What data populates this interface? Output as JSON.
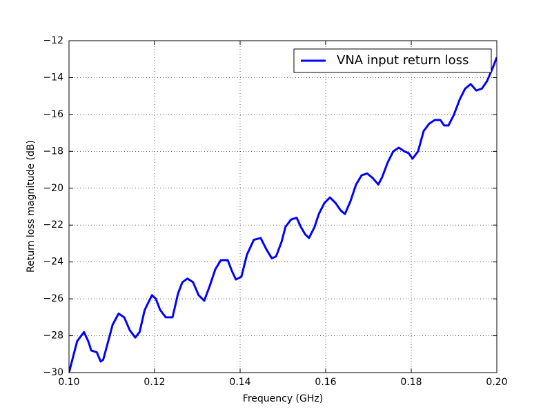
{
  "chart_data": {
    "type": "line",
    "xlabel": "Frequency (GHz)",
    "ylabel": "Return loss magnitude (dB)",
    "xlim": [
      0.1,
      0.2
    ],
    "ylim": [
      -30,
      -12
    ],
    "xticks": [
      {
        "value": 0.1,
        "label": "0.10"
      },
      {
        "value": 0.12,
        "label": "0.12"
      },
      {
        "value": 0.14,
        "label": "0.14"
      },
      {
        "value": 0.16,
        "label": "0.16"
      },
      {
        "value": 0.18,
        "label": "0.18"
      },
      {
        "value": 0.2,
        "label": "0.20"
      }
    ],
    "yticks": [
      {
        "value": -30,
        "label": "−30"
      },
      {
        "value": -28,
        "label": "−28"
      },
      {
        "value": -26,
        "label": "−26"
      },
      {
        "value": -24,
        "label": "−24"
      },
      {
        "value": -22,
        "label": "−22"
      },
      {
        "value": -20,
        "label": "−20"
      },
      {
        "value": -18,
        "label": "−18"
      },
      {
        "value": -16,
        "label": "−16"
      },
      {
        "value": -14,
        "label": "−14"
      },
      {
        "value": -12,
        "label": "−12"
      }
    ],
    "grid": true,
    "legend": "upper right",
    "x": [
      0.1,
      0.1019,
      0.1035,
      0.1045,
      0.1052,
      0.1065,
      0.1074,
      0.108,
      0.1094,
      0.1102,
      0.1116,
      0.1129,
      0.1142,
      0.1155,
      0.1165,
      0.1177,
      0.1194,
      0.1203,
      0.1213,
      0.1226,
      0.1242,
      0.1255,
      0.1265,
      0.1277,
      0.129,
      0.1303,
      0.1316,
      0.1329,
      0.1342,
      0.1355,
      0.1371,
      0.1381,
      0.139,
      0.1403,
      0.1416,
      0.1432,
      0.1448,
      0.1461,
      0.1474,
      0.1484,
      0.1497,
      0.1506,
      0.1519,
      0.1532,
      0.1542,
      0.1552,
      0.1561,
      0.1574,
      0.1584,
      0.1597,
      0.161,
      0.1623,
      0.1635,
      0.1645,
      0.1658,
      0.1671,
      0.1684,
      0.1697,
      0.171,
      0.1723,
      0.1732,
      0.1745,
      0.1758,
      0.1771,
      0.1784,
      0.1794,
      0.1803,
      0.1816,
      0.1829,
      0.1842,
      0.1855,
      0.1868,
      0.1877,
      0.1887,
      0.19,
      0.1913,
      0.1926,
      0.1939,
      0.1952,
      0.1965,
      0.1977,
      0.199,
      0.2
    ],
    "series": [
      {
        "name": "VNA input return loss",
        "color": "#0000ff",
        "values": [
          -30,
          -28.3,
          -27.8,
          -28.3,
          -28.8,
          -28.9,
          -29.4,
          -29.3,
          -28.1,
          -27.4,
          -26.8,
          -27.0,
          -27.7,
          -28.1,
          -27.8,
          -26.6,
          -25.8,
          -26.0,
          -26.6,
          -27.0,
          -27.0,
          -25.7,
          -25.1,
          -24.9,
          -25.1,
          -25.8,
          -26.1,
          -25.3,
          -24.4,
          -23.9,
          -23.9,
          -24.5,
          -24.95,
          -24.8,
          -23.6,
          -22.8,
          -22.7,
          -23.3,
          -23.8,
          -23.7,
          -22.9,
          -22.1,
          -21.7,
          -21.6,
          -22.1,
          -22.5,
          -22.7,
          -22.1,
          -21.4,
          -20.8,
          -20.5,
          -20.8,
          -21.2,
          -21.4,
          -20.7,
          -19.8,
          -19.3,
          -19.2,
          -19.45,
          -19.8,
          -19.4,
          -18.6,
          -18.0,
          -17.8,
          -18.0,
          -18.1,
          -18.4,
          -18.0,
          -16.9,
          -16.5,
          -16.3,
          -16.3,
          -16.6,
          -16.6,
          -16.0,
          -15.2,
          -14.6,
          -14.35,
          -14.7,
          -14.6,
          -14.2,
          -13.5,
          -12.9
        ]
      }
    ]
  }
}
